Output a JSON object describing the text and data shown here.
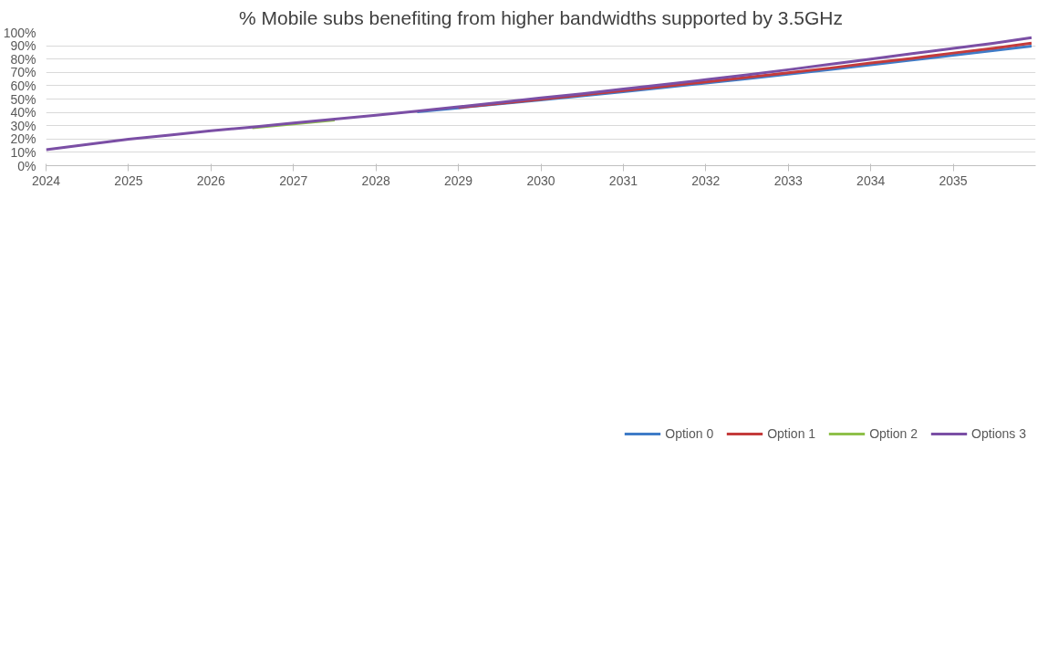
{
  "chart_data": {
    "type": "line",
    "title": "% Mobile subs benefiting from higher bandwidths supported by 3.5GHz",
    "x": [
      2024,
      2024.5,
      2025,
      2025.5,
      2026,
      2026.5,
      2027,
      2027.5,
      2028,
      2028.5,
      2029,
      2029.5,
      2030,
      2030.5,
      2031,
      2031.5,
      2032,
      2032.5,
      2033,
      2033.5,
      2034,
      2034.5,
      2035,
      2035.5,
      2035.95
    ],
    "series": [
      {
        "name": "Option 0",
        "color": "#3f7cc8",
        "values": [
          null,
          null,
          null,
          null,
          null,
          null,
          null,
          null,
          null,
          40.4,
          43.4,
          46.4,
          49.3,
          52.4,
          55.5,
          58.7,
          62,
          65.3,
          68.6,
          72,
          75.7,
          79.3,
          82.8,
          86.5,
          89.8
        ]
      },
      {
        "name": "Option 1",
        "color": "#c43b3b",
        "values": [
          null,
          null,
          null,
          null,
          null,
          null,
          null,
          null,
          null,
          null,
          43.6,
          46.8,
          49.8,
          53,
          56.3,
          59.5,
          62.8,
          66.2,
          69.7,
          73.2,
          77,
          80.5,
          84.5,
          88.2,
          92
        ]
      },
      {
        "name": "Option 2",
        "color": "#8fc04a",
        "values": [
          null,
          null,
          null,
          null,
          null,
          28.4,
          31.3,
          34.3,
          null,
          null,
          null,
          null,
          null,
          null,
          null,
          null,
          null,
          null,
          null,
          null,
          null,
          null,
          null,
          null,
          null
        ]
      },
      {
        "name": "Options 3",
        "color": "#7b4fa5",
        "values": [
          12,
          16,
          19.8,
          23,
          26.2,
          29,
          32,
          35,
          37.8,
          41,
          44.2,
          47.5,
          50.8,
          54,
          57.5,
          61,
          64.5,
          68.2,
          72,
          76,
          80,
          84,
          88,
          92,
          96
        ]
      }
    ],
    "xlim": [
      2024,
      2036
    ],
    "xticks": [
      2024,
      2025,
      2026,
      2027,
      2028,
      2029,
      2030,
      2031,
      2032,
      2033,
      2034,
      2035
    ],
    "ylim": [
      0,
      100
    ],
    "yticks": [
      {
        "value": 0,
        "label": "0%"
      },
      {
        "value": 10,
        "label": "10%"
      },
      {
        "value": 20,
        "label": "20%"
      },
      {
        "value": 30,
        "label": "30%"
      },
      {
        "value": 40,
        "label": "40%"
      },
      {
        "value": 50,
        "label": "50%"
      },
      {
        "value": 60,
        "label": "60%"
      },
      {
        "value": 70,
        "label": "70%"
      },
      {
        "value": 80,
        "label": "80%"
      },
      {
        "value": 90,
        "label": "90%"
      },
      {
        "value": 100,
        "label": "100%"
      }
    ],
    "grid": "y",
    "legend": "bottom",
    "marker": "none",
    "line_style": "solid"
  }
}
